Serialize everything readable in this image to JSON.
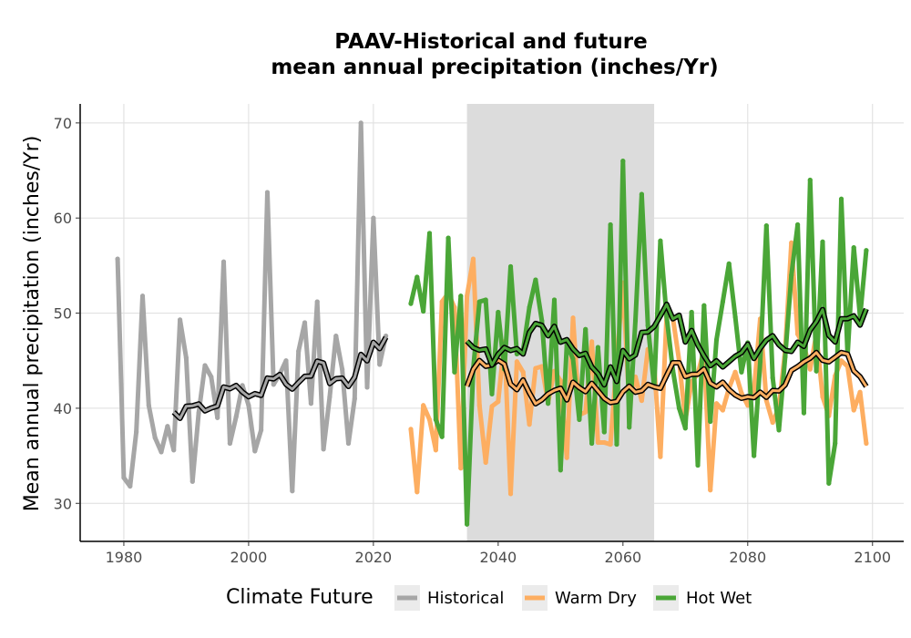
{
  "chart_data": {
    "type": "line",
    "title": [
      "PAAV-Historical and future",
      "mean annual precipitation (inches/Yr)"
    ],
    "xlabel": "",
    "ylabel": "Mean annual precipitation (inches/Yr)",
    "xlim": [
      1973,
      2105
    ],
    "ylim": [
      26,
      72
    ],
    "x_ticks": [
      1980,
      2000,
      2020,
      2040,
      2060,
      2080,
      2100
    ],
    "y_ticks": [
      30,
      40,
      50,
      60,
      70
    ],
    "grid": true,
    "shaded_period": [
      2035,
      2065
    ],
    "legend": {
      "title": "Climate Future",
      "position": "bottom",
      "entries": [
        {
          "label": "Historical",
          "color": "#a6a6a6"
        },
        {
          "label": "Warm Dry",
          "color": "#fdae61"
        },
        {
          "label": "Hot Wet",
          "color": "#4aa637"
        }
      ]
    },
    "series": [
      {
        "name": "Historical",
        "color": "#a6a6a6",
        "x": [
          1979,
          1980,
          1981,
          1982,
          1983,
          1984,
          1985,
          1986,
          1987,
          1988,
          1989,
          1990,
          1991,
          1992,
          1993,
          1994,
          1995,
          1996,
          1997,
          1998,
          1999,
          2000,
          2001,
          2002,
          2003,
          2004,
          2005,
          2006,
          2007,
          2008,
          2009,
          2010,
          2011,
          2012,
          2013,
          2014,
          2015,
          2016,
          2017,
          2018,
          2019,
          2020,
          2021,
          2022
        ],
        "y": [
          55.7,
          32.7,
          31.8,
          37.5,
          51.8,
          40.3,
          36.9,
          35.4,
          38.1,
          35.6,
          49.3,
          45.3,
          32.3,
          39.5,
          44.5,
          43.3,
          39.0,
          55.4,
          36.3,
          39.1,
          42.4,
          40.3,
          35.5,
          37.7,
          62.7,
          42.5,
          43.6,
          45.0,
          31.3,
          46.0,
          49.0,
          40.5,
          51.2,
          35.7,
          41.2,
          47.6,
          44.1,
          36.3,
          41.0,
          70.0,
          42.2,
          60.0,
          44.6,
          47.6
        ]
      },
      {
        "name": "Warm Dry",
        "color": "#fdae61",
        "x": [
          2026,
          2027,
          2028,
          2029,
          2030,
          2031,
          2032,
          2033,
          2034,
          2035,
          2036,
          2037,
          2038,
          2039,
          2040,
          2041,
          2042,
          2043,
          2044,
          2045,
          2046,
          2047,
          2048,
          2049,
          2050,
          2051,
          2052,
          2053,
          2054,
          2055,
          2056,
          2057,
          2058,
          2059,
          2060,
          2061,
          2062,
          2063,
          2064,
          2065,
          2066,
          2067,
          2068,
          2069,
          2070,
          2071,
          2072,
          2073,
          2074,
          2075,
          2076,
          2077,
          2078,
          2079,
          2080,
          2081,
          2082,
          2083,
          2084,
          2085,
          2086,
          2087,
          2088,
          2089,
          2090,
          2091,
          2092,
          2093,
          2094,
          2095,
          2096,
          2097,
          2098,
          2099
        ],
        "y": [
          37.8,
          31.2,
          40.3,
          38.8,
          35.6,
          51.2,
          52.1,
          50.6,
          33.7,
          51.8,
          55.7,
          40.3,
          34.3,
          40.2,
          40.7,
          47.0,
          31.0,
          44.9,
          43.8,
          38.3,
          44.2,
          44.4,
          40.6,
          43.9,
          42.9,
          34.8,
          49.5,
          39.3,
          39.6,
          47.0,
          36.4,
          36.4,
          36.2,
          45.0,
          53.2,
          40.5,
          43.3,
          40.8,
          46.2,
          44.5,
          34.9,
          49.9,
          49.5,
          45.0,
          38.7,
          42.8,
          43.6,
          46.2,
          31.4,
          40.5,
          39.8,
          42.1,
          43.8,
          41.6,
          40.3,
          41.8,
          49.4,
          40.8,
          38.5,
          40.1,
          46.1,
          57.4,
          47.8,
          46.6,
          44.1,
          47.8,
          41.2,
          39.2,
          43.4,
          45.0,
          44.4,
          39.8,
          41.7,
          36.3
        ]
      },
      {
        "name": "Hot Wet",
        "color": "#4aa637",
        "x": [
          2026,
          2027,
          2028,
          2029,
          2030,
          2031,
          2032,
          2033,
          2034,
          2035,
          2036,
          2037,
          2038,
          2039,
          2040,
          2041,
          2042,
          2043,
          2044,
          2045,
          2046,
          2047,
          2048,
          2049,
          2050,
          2051,
          2052,
          2053,
          2054,
          2055,
          2056,
          2057,
          2058,
          2059,
          2060,
          2061,
          2062,
          2063,
          2064,
          2065,
          2066,
          2067,
          2068,
          2069,
          2070,
          2071,
          2072,
          2073,
          2074,
          2075,
          2076,
          2077,
          2078,
          2079,
          2080,
          2081,
          2082,
          2083,
          2084,
          2085,
          2086,
          2087,
          2088,
          2089,
          2090,
          2091,
          2092,
          2093,
          2094,
          2095,
          2096,
          2097,
          2098,
          2099
        ],
        "y": [
          51.0,
          53.8,
          50.2,
          58.4,
          38.8,
          37.0,
          57.9,
          43.8,
          51.8,
          27.8,
          44.2,
          51.2,
          51.4,
          41.5,
          50.1,
          44.1,
          54.9,
          45.7,
          46.1,
          50.6,
          53.5,
          49.2,
          40.5,
          51.4,
          33.5,
          46.7,
          45.2,
          38.8,
          48.3,
          36.3,
          46.4,
          37.5,
          59.3,
          36.2,
          66.0,
          38.0,
          49.2,
          62.5,
          48.7,
          42.2,
          57.6,
          49.6,
          44.0,
          40.0,
          37.9,
          50.1,
          34.0,
          50.8,
          38.6,
          47.2,
          51.2,
          55.2,
          49.6,
          43.8,
          46.9,
          35.0,
          44.9,
          59.2,
          43.2,
          37.7,
          45.4,
          54.0,
          59.3,
          39.5,
          64.0,
          43.9,
          57.5,
          32.1,
          36.3,
          62.0,
          45.6,
          56.9,
          49.6,
          56.6
        ]
      }
    ]
  }
}
